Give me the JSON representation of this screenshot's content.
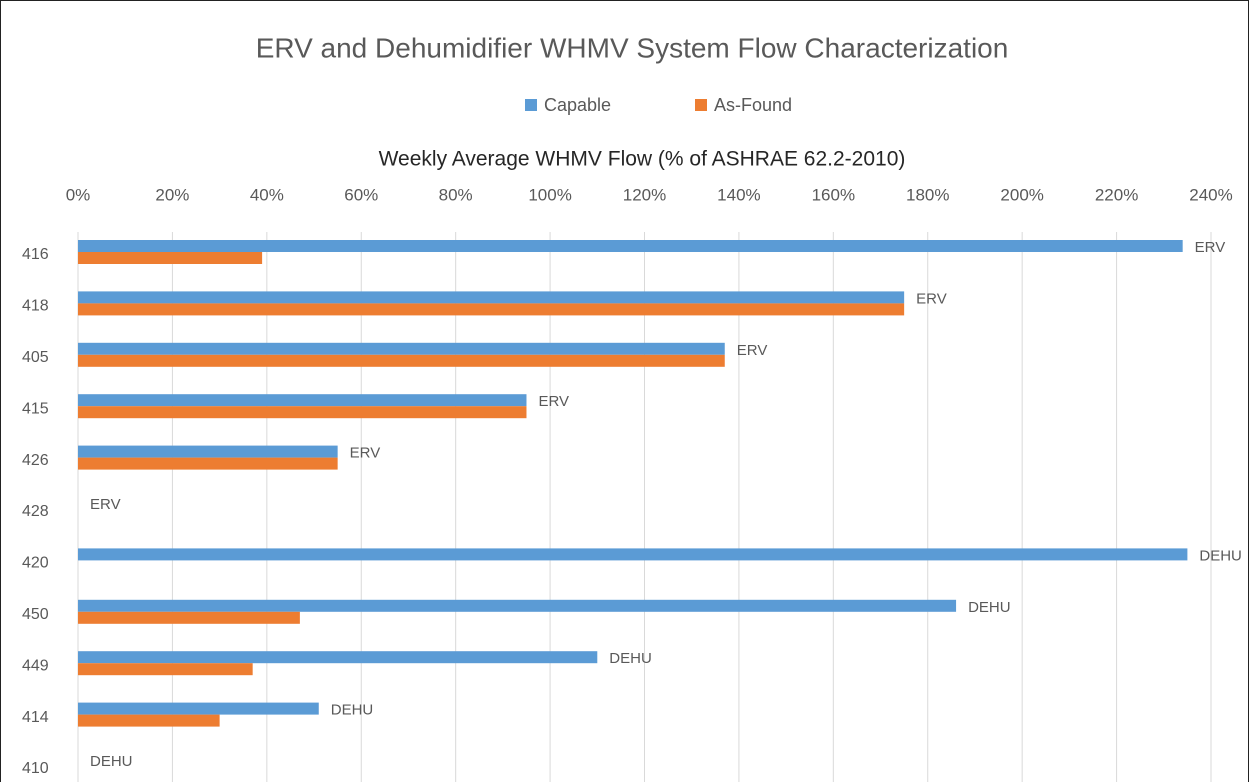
{
  "chart_data": {
    "type": "bar",
    "orientation": "horizontal",
    "title": "ERV and Dehumidifier WHMV System Flow Characterization",
    "x_label": "Weekly  Average WHMV Flow (% of ASHRAE 62.2-2010)",
    "categories": [
      "416",
      "418",
      "405",
      "415",
      "426",
      "428",
      "420",
      "450",
      "449",
      "414",
      "410"
    ],
    "bar_labels": [
      "ERV",
      "ERV",
      "ERV",
      "ERV",
      "ERV",
      "ERV",
      "DEHU",
      "DEHU",
      "DEHU",
      "DEHU",
      "DEHU"
    ],
    "series": [
      {
        "name": "Capable",
        "color": "#5b9bd5",
        "values": [
          234,
          175,
          137,
          95,
          55,
          0,
          235,
          186,
          110,
          51,
          0
        ]
      },
      {
        "name": "As-Found",
        "color": "#ed7d31",
        "values": [
          39,
          175,
          137,
          95,
          55,
          0,
          0,
          47,
          37,
          30,
          0
        ]
      }
    ],
    "xlim": [
      0,
      240
    ],
    "xticks": [
      {
        "value": 0,
        "label": "0%"
      },
      {
        "value": 20,
        "label": "20%"
      },
      {
        "value": 40,
        "label": "40%"
      },
      {
        "value": 60,
        "label": "60%"
      },
      {
        "value": 80,
        "label": "80%"
      },
      {
        "value": 100,
        "label": "100%"
      },
      {
        "value": 120,
        "label": "120%"
      },
      {
        "value": 140,
        "label": "140%"
      },
      {
        "value": 160,
        "label": "160%"
      },
      {
        "value": 180,
        "label": "180%"
      },
      {
        "value": 200,
        "label": "200%"
      },
      {
        "value": 220,
        "label": "220%"
      },
      {
        "value": 240,
        "label": "240%"
      }
    ],
    "grid": true,
    "legend": "top"
  }
}
